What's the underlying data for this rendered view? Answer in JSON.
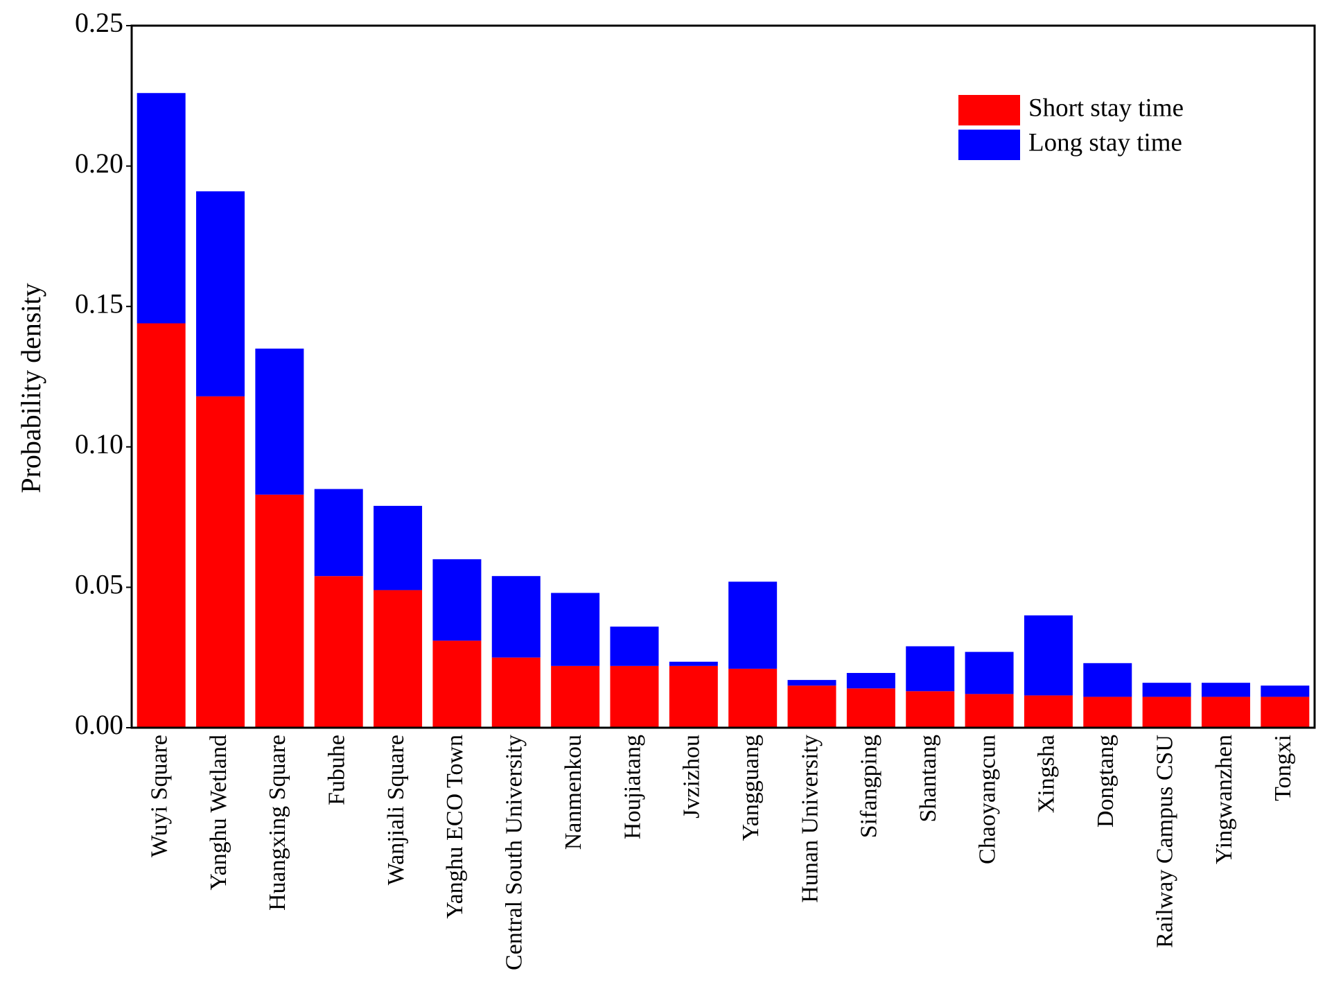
{
  "chart_data": {
    "type": "stacked_bar",
    "y_label": "Probability density",
    "categories": [
      "Wuyi Square",
      "Yanghu Wetland",
      "Huangxing Square",
      "Fubuhe",
      "Wanjiali Square",
      "Yanghu ECO Town",
      "Central South University",
      "Nanmenkou",
      "Houjiatang",
      "Jvzizhou",
      "Yangguang",
      "Hunan University",
      "Sifangping",
      "Shantang",
      "Chaoyangcun",
      "Xingsha",
      "Dongtang",
      "Railway Campus CSU",
      "Yingwanzhen",
      "Tongxi"
    ],
    "series": [
      {
        "name": "Short stay time",
        "color": "#ff0000",
        "values": [
          0.144,
          0.118,
          0.083,
          0.054,
          0.049,
          0.031,
          0.025,
          0.022,
          0.022,
          0.022,
          0.021,
          0.015,
          0.014,
          0.013,
          0.012,
          0.0115,
          0.011,
          0.011,
          0.011,
          0.011
        ]
      },
      {
        "name": "Long stay time",
        "color": "#0000ff",
        "values": [
          0.082,
          0.073,
          0.052,
          0.031,
          0.03,
          0.029,
          0.029,
          0.026,
          0.014,
          0.0015,
          0.031,
          0.002,
          0.0055,
          0.016,
          0.015,
          0.0285,
          0.012,
          0.005,
          0.005,
          0.004
        ]
      }
    ],
    "ylim": [
      0,
      0.25
    ],
    "yticks": [
      {
        "value": 0,
        "label": "0.00"
      },
      {
        "value": 0.05,
        "label": "0.05"
      },
      {
        "value": 0.1,
        "label": "0.10"
      },
      {
        "value": 0.15,
        "label": "0.15"
      },
      {
        "value": 0.2,
        "label": "0.20"
      },
      {
        "value": 0.25,
        "label": "0.25"
      }
    ],
    "legend": "upper right"
  }
}
